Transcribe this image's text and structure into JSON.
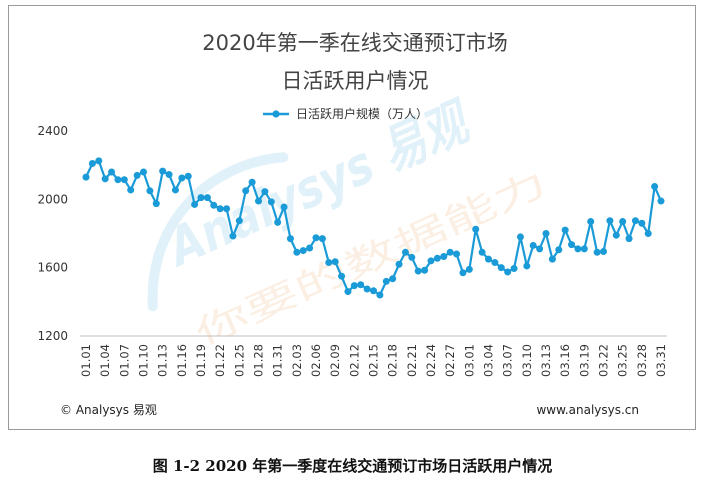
{
  "caption": "图 1-2 2020 年第一季度在线交通预订市场日活跃用户情况",
  "footer": {
    "left": "© Analysys 易观",
    "right": "www.analysys.cn"
  },
  "watermark": {
    "brand": "Analysys 易观",
    "slogan": "你要的数据能力"
  },
  "colors": {
    "series": "#1a9bd7",
    "text": "#444444",
    "grid": "#d9d9d9"
  },
  "chart_data": {
    "type": "line",
    "title": "2020年第一季在线交通预订市场",
    "subtitle": "日活跃用户情况",
    "xlabel": "",
    "ylabel": "",
    "ylim": [
      1200,
      2400
    ],
    "yticks": [
      1200,
      1600,
      2000,
      2400
    ],
    "legend_position": "top",
    "grid": false,
    "x_tick_labels": [
      "01.01",
      "01.04",
      "01.07",
      "01.10",
      "01.13",
      "01.16",
      "01.19",
      "01.22",
      "01.25",
      "01.28",
      "01.31",
      "02.03",
      "02.06",
      "02.09",
      "02.12",
      "02.15",
      "02.18",
      "02.21",
      "02.24",
      "02.27",
      "03.01",
      "03.04",
      "03.07",
      "03.10",
      "03.13",
      "03.16",
      "03.19",
      "03.22",
      "03.25",
      "03.28",
      "03.31"
    ],
    "series": [
      {
        "name": "日活跃用户规模（万人）",
        "x": [
          "01.01",
          "01.02",
          "01.03",
          "01.04",
          "01.05",
          "01.06",
          "01.07",
          "01.08",
          "01.09",
          "01.10",
          "01.11",
          "01.12",
          "01.13",
          "01.14",
          "01.15",
          "01.16",
          "01.17",
          "01.18",
          "01.19",
          "01.20",
          "01.21",
          "01.22",
          "01.23",
          "01.24",
          "01.25",
          "01.26",
          "01.27",
          "01.28",
          "01.29",
          "01.30",
          "01.31",
          "02.01",
          "02.02",
          "02.03",
          "02.04",
          "02.05",
          "02.06",
          "02.07",
          "02.08",
          "02.09",
          "02.10",
          "02.11",
          "02.12",
          "02.13",
          "02.14",
          "02.15",
          "02.16",
          "02.17",
          "02.18",
          "02.19",
          "02.20",
          "02.21",
          "02.22",
          "02.23",
          "02.24",
          "02.25",
          "02.26",
          "02.27",
          "02.28",
          "02.29",
          "03.01",
          "03.02",
          "03.03",
          "03.04",
          "03.05",
          "03.06",
          "03.07",
          "03.08",
          "03.09",
          "03.10",
          "03.11",
          "03.12",
          "03.13",
          "03.14",
          "03.15",
          "03.16",
          "03.17",
          "03.18",
          "03.19",
          "03.20",
          "03.21",
          "03.22",
          "03.23",
          "03.24",
          "03.25",
          "03.26",
          "03.27",
          "03.28",
          "03.29",
          "03.30",
          "03.31"
        ],
        "values": [
          2130,
          2210,
          2225,
          2120,
          2160,
          2115,
          2115,
          2055,
          2140,
          2160,
          2050,
          1975,
          2165,
          2145,
          2055,
          2125,
          2135,
          1970,
          2010,
          2010,
          1965,
          1945,
          1945,
          1785,
          1875,
          2050,
          2100,
          1990,
          2045,
          1985,
          1865,
          1955,
          1770,
          1690,
          1700,
          1715,
          1775,
          1770,
          1630,
          1635,
          1550,
          1460,
          1495,
          1500,
          1475,
          1465,
          1440,
          1520,
          1535,
          1620,
          1690,
          1660,
          1580,
          1585,
          1640,
          1655,
          1665,
          1690,
          1680,
          1570,
          1590,
          1825,
          1690,
          1650,
          1630,
          1600,
          1575,
          1595,
          1780,
          1610,
          1730,
          1710,
          1800,
          1650,
          1705,
          1820,
          1735,
          1710,
          1710,
          1870,
          1690,
          1695,
          1875,
          1790,
          1870,
          1770,
          1875,
          1860,
          1800,
          2075,
          1990
        ]
      }
    ]
  }
}
